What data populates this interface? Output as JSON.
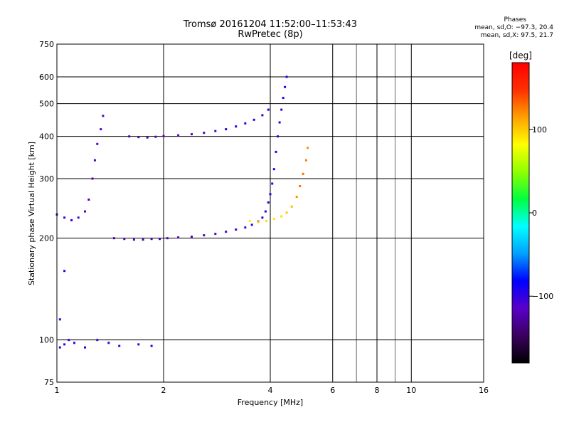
{
  "title": {
    "line1": "Tromsø 20161204 11:52:00–11:53:43",
    "line2": "RwPretec (8p)"
  },
  "phases": {
    "label": "Phases",
    "o_mode": "mean, sd,O: −97.3, 20.4",
    "x_mode": "mean, sd,X:  97.5, 21.7"
  },
  "chart_data": {
    "type": "scatter",
    "title": "Tromsø 20161204 11:52:00–11:53:43 RwPretec (8p)",
    "xlabel": "Frequency [MHz]",
    "ylabel": "Stationary phase Virtual Height [km]",
    "x_scale": "log",
    "y_scale": "log",
    "xlim": [
      1,
      16
    ],
    "ylim": [
      75,
      750
    ],
    "x_ticks": [
      1,
      2,
      4,
      6,
      8,
      10,
      16
    ],
    "x_tick_labels": [
      "1",
      "2",
      "4",
      "6",
      "8",
      "10",
      "16"
    ],
    "x_minor_ticks": [
      7,
      9
    ],
    "y_ticks": [
      75,
      100,
      200,
      300,
      400,
      500,
      600,
      750
    ],
    "y_tick_labels": [
      "75",
      "100",
      "200",
      "300",
      "400",
      "500",
      "600",
      "750"
    ],
    "grid": true,
    "colorbar": {
      "label": "[deg]",
      "range": [
        -180,
        180
      ],
      "ticks": [
        100,
        0,
        -100
      ],
      "tick_labels": [
        "100",
        "0",
        "−100"
      ],
      "colormap": [
        "#000000",
        "#3a0060",
        "#5a00c8",
        "#0000ff",
        "#00a0ff",
        "#00ffff",
        "#00ff40",
        "#90ff00",
        "#ffff00",
        "#ffa000",
        "#ff3000",
        "#ff0000"
      ]
    },
    "series": [
      {
        "points": [
          [
            1.45,
            200,
            -125
          ],
          [
            1.55,
            199,
            -123
          ],
          [
            1.65,
            198,
            -123
          ],
          [
            1.75,
            198,
            -125
          ],
          [
            1.85,
            199,
            -125
          ],
          [
            1.95,
            199,
            -122
          ],
          [
            2.05,
            200,
            -120
          ],
          [
            2.2,
            201,
            -118
          ],
          [
            2.4,
            202,
            -118
          ],
          [
            2.6,
            204,
            -116
          ],
          [
            2.8,
            206,
            -113
          ],
          [
            3.0,
            209,
            -111
          ],
          [
            3.2,
            212,
            -106
          ],
          [
            3.4,
            215,
            -102
          ],
          [
            3.55,
            219,
            -100
          ],
          [
            3.7,
            224,
            -98
          ],
          [
            3.8,
            230,
            -97
          ],
          [
            3.88,
            240,
            -96
          ],
          [
            3.95,
            255,
            -96
          ],
          [
            4.0,
            270,
            -95
          ],
          [
            4.05,
            290,
            -95
          ],
          [
            4.1,
            320,
            -95
          ],
          [
            4.15,
            360,
            -95
          ],
          [
            4.2,
            400,
            -96
          ],
          [
            4.25,
            440,
            -96
          ],
          [
            4.3,
            480,
            -95
          ],
          [
            4.35,
            520,
            -95
          ],
          [
            4.4,
            560,
            -95
          ],
          [
            4.45,
            600,
            -95
          ]
        ]
      },
      {
        "points": [
          [
            1.6,
            400,
            -125
          ],
          [
            1.7,
            398,
            -123
          ],
          [
            1.8,
            397,
            -125
          ],
          [
            1.9,
            399,
            -122
          ],
          [
            2.0,
            401,
            -118
          ],
          [
            2.2,
            403,
            -116
          ],
          [
            2.4,
            406,
            -115
          ],
          [
            2.6,
            410,
            -110
          ],
          [
            2.8,
            415,
            -105
          ],
          [
            3.0,
            420,
            -100
          ],
          [
            3.2,
            428,
            -98
          ],
          [
            3.4,
            437,
            -96
          ],
          [
            3.6,
            448,
            -95
          ],
          [
            3.8,
            462,
            -95
          ],
          [
            3.95,
            480,
            -94
          ]
        ]
      },
      {
        "points": [
          [
            3.5,
            225,
            90
          ],
          [
            3.7,
            223,
            95
          ],
          [
            3.9,
            225,
            92
          ],
          [
            4.1,
            228,
            90
          ],
          [
            4.3,
            232,
            92
          ],
          [
            4.45,
            238,
            100
          ],
          [
            4.6,
            248,
            105
          ],
          [
            4.75,
            265,
            120
          ],
          [
            4.85,
            285,
            130
          ],
          [
            4.95,
            310,
            130
          ],
          [
            5.05,
            340,
            125
          ],
          [
            5.1,
            370,
            120
          ]
        ]
      },
      {
        "points": [
          [
            1.35,
            460,
            -110
          ],
          [
            1.33,
            420,
            -115
          ],
          [
            1.3,
            380,
            -118
          ],
          [
            1.28,
            340,
            -122
          ],
          [
            1.26,
            300,
            -125
          ],
          [
            1.23,
            260,
            -120
          ],
          [
            1.2,
            240,
            -115
          ],
          [
            1.15,
            230,
            -110
          ],
          [
            1.1,
            226,
            -105
          ],
          [
            1.05,
            230,
            -102
          ],
          [
            1.0,
            235,
            -100
          ]
        ]
      },
      {
        "points": [
          [
            1.02,
            95,
            -100
          ],
          [
            1.05,
            97,
            -100
          ],
          [
            1.08,
            100,
            -102
          ],
          [
            1.12,
            98,
            -100
          ],
          [
            1.2,
            95,
            -100
          ],
          [
            1.3,
            100,
            -102
          ],
          [
            1.4,
            98,
            -100
          ],
          [
            1.5,
            96,
            -102
          ],
          [
            1.7,
            97,
            -100
          ],
          [
            1.85,
            96,
            -100
          ],
          [
            1.02,
            115,
            -100
          ],
          [
            1.05,
            160,
            -100
          ]
        ]
      }
    ]
  }
}
